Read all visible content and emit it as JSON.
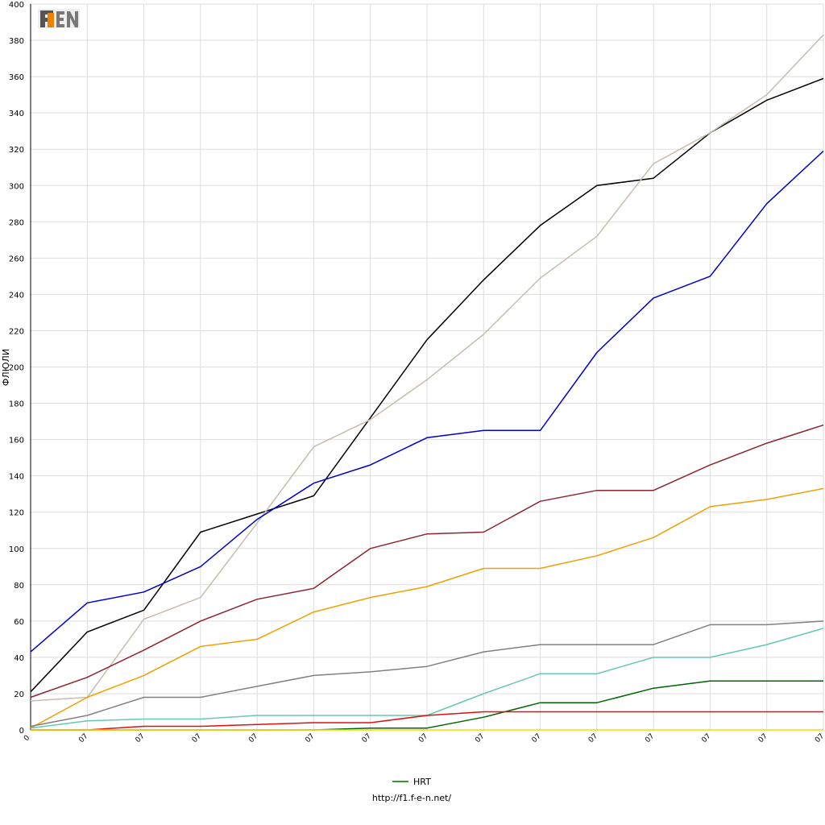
{
  "logo_text": "F1EN",
  "source_url": "http://f1.f-e-n.net/",
  "chart_data": {
    "type": "line",
    "ylabel": "ФЛЮЛИ",
    "xlabel": "",
    "ylim": [
      0,
      400
    ],
    "yticks": [
      0,
      20,
      40,
      60,
      80,
      100,
      120,
      140,
      160,
      180,
      200,
      220,
      240,
      260,
      280,
      300,
      320,
      340,
      360,
      380,
      400
    ],
    "x_tick_labels": [
      "0",
      "07",
      "07",
      "07",
      "07",
      "07",
      "07",
      "07",
      "07",
      "07",
      "07",
      "07",
      "07",
      "07",
      "07"
    ],
    "grid": true,
    "legend_placement": "bottom-center",
    "legend": [
      {
        "label": "HRT",
        "color": "#339933"
      }
    ],
    "series": [
      {
        "color": "#000000",
        "values": [
          21,
          54,
          66,
          109,
          119,
          129,
          172,
          215,
          248,
          278,
          300,
          304,
          329,
          347,
          359
        ]
      },
      {
        "color": "#c8bcb0",
        "values": [
          16,
          18,
          61,
          73,
          114,
          156,
          171,
          193,
          218,
          249,
          272,
          312,
          329,
          350,
          383
        ]
      },
      {
        "color": "#0000cc",
        "values": [
          43,
          70,
          76,
          90,
          116,
          136,
          146,
          161,
          165,
          165,
          208,
          238,
          250,
          290,
          319
        ]
      },
      {
        "color": "#8b2630",
        "values": [
          18,
          29,
          44,
          60,
          72,
          78,
          100,
          108,
          109,
          126,
          132,
          132,
          146,
          158,
          168
        ]
      },
      {
        "color": "#f0a000",
        "values": [
          1,
          18,
          30,
          46,
          50,
          65,
          73,
          79,
          89,
          89,
          96,
          106,
          123,
          127,
          133
        ]
      },
      {
        "color": "#808080",
        "values": [
          2,
          8,
          18,
          18,
          24,
          30,
          32,
          35,
          43,
          47,
          47,
          47,
          58,
          58,
          60
        ]
      },
      {
        "color": "#66c8b4",
        "values": [
          1,
          5,
          6,
          6,
          8,
          8,
          8,
          8,
          20,
          31,
          31,
          40,
          40,
          47,
          56
        ]
      },
      {
        "color": "#006400",
        "values": [
          0,
          0,
          0,
          0,
          0,
          0,
          1,
          1,
          7,
          15,
          15,
          23,
          27,
          27,
          27
        ]
      },
      {
        "color": "#e01010",
        "values": [
          0,
          0,
          2,
          2,
          3,
          4,
          4,
          8,
          10,
          10,
          10,
          10,
          10,
          10,
          10
        ]
      },
      {
        "color": "#ffd700",
        "values": [
          0,
          0,
          0,
          0,
          0,
          0,
          0,
          0,
          0,
          0,
          0,
          0,
          0,
          0,
          0
        ]
      }
    ]
  }
}
